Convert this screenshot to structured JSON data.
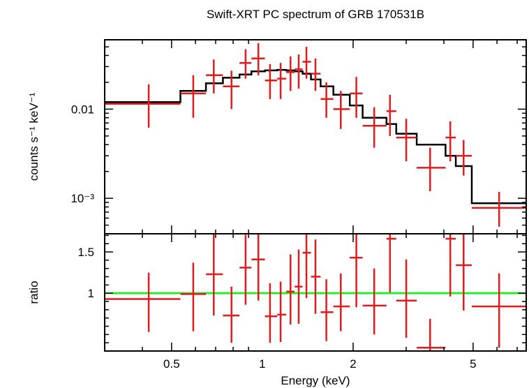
{
  "chart_data": [
    {
      "type": "scatter",
      "panel": "spectrum",
      "title": "Swift-XRT PC spectrum of GRB 170531B",
      "xlabel": "Energy (keV)",
      "ylabel": "counts s⁻¹ keV⁻¹",
      "x_scale": "log",
      "y_scale": "log",
      "xlim": [
        0.3,
        7.5
      ],
      "ylim": [
        0.0004,
        0.06
      ],
      "y_tick_labels": [
        "0.01",
        "10⁻³"
      ],
      "grid": false,
      "data": {
        "color": "#e31a1c",
        "points": [
          {
            "x": 0.42,
            "x_lo": 0.3,
            "x_hi": 0.535,
            "y": 0.0115,
            "y_err_lo": 0.0053,
            "y_err_hi": 0.0075
          },
          {
            "x": 0.59,
            "x_lo": 0.535,
            "x_hi": 0.65,
            "y": 0.015,
            "y_err_lo": 0.007,
            "y_err_hi": 0.009
          },
          {
            "x": 0.69,
            "x_lo": 0.65,
            "x_hi": 0.74,
            "y": 0.024,
            "y_err_lo": 0.009,
            "y_err_hi": 0.012
          },
          {
            "x": 0.79,
            "x_lo": 0.74,
            "x_hi": 0.84,
            "y": 0.018,
            "y_err_lo": 0.008,
            "y_err_hi": 0.009
          },
          {
            "x": 0.88,
            "x_lo": 0.84,
            "x_hi": 0.92,
            "y": 0.033,
            "y_err_lo": 0.011,
            "y_err_hi": 0.014
          },
          {
            "x": 0.97,
            "x_lo": 0.92,
            "x_hi": 1.02,
            "y": 0.037,
            "y_err_lo": 0.013,
            "y_err_hi": 0.018
          },
          {
            "x": 1.06,
            "x_lo": 1.02,
            "x_hi": 1.12,
            "y": 0.021,
            "y_err_lo": 0.008,
            "y_err_hi": 0.011
          },
          {
            "x": 1.15,
            "x_lo": 1.12,
            "x_hi": 1.2,
            "y": 0.022,
            "y_err_lo": 0.009,
            "y_err_hi": 0.011
          },
          {
            "x": 1.24,
            "x_lo": 1.2,
            "x_hi": 1.28,
            "y": 0.026,
            "y_err_lo": 0.01,
            "y_err_hi": 0.013
          },
          {
            "x": 1.32,
            "x_lo": 1.28,
            "x_hi": 1.36,
            "y": 0.028,
            "y_err_lo": 0.011,
            "y_err_hi": 0.013
          },
          {
            "x": 1.4,
            "x_lo": 1.36,
            "x_hi": 1.45,
            "y": 0.034,
            "y_err_lo": 0.012,
            "y_err_hi": 0.016
          },
          {
            "x": 1.5,
            "x_lo": 1.45,
            "x_hi": 1.56,
            "y": 0.025,
            "y_err_lo": 0.009,
            "y_err_hi": 0.012
          },
          {
            "x": 1.63,
            "x_lo": 1.56,
            "x_hi": 1.72,
            "y": 0.013,
            "y_err_lo": 0.005,
            "y_err_hi": 0.007
          },
          {
            "x": 1.82,
            "x_lo": 1.72,
            "x_hi": 1.95,
            "y": 0.01,
            "y_err_lo": 0.004,
            "y_err_hi": 0.006
          },
          {
            "x": 2.05,
            "x_lo": 1.95,
            "x_hi": 2.15,
            "y": 0.015,
            "y_err_lo": 0.007,
            "y_err_hi": 0.008
          },
          {
            "x": 2.35,
            "x_lo": 2.15,
            "x_hi": 2.58,
            "y": 0.0065,
            "y_err_lo": 0.0028,
            "y_err_hi": 0.004
          },
          {
            "x": 2.65,
            "x_lo": 2.58,
            "x_hi": 2.78,
            "y": 0.0095,
            "y_err_lo": 0.0045,
            "y_err_hi": 0.005
          },
          {
            "x": 3.0,
            "x_lo": 2.78,
            "x_hi": 3.25,
            "y": 0.0048,
            "y_err_lo": 0.0022,
            "y_err_hi": 0.003
          },
          {
            "x": 3.6,
            "x_lo": 3.25,
            "x_hi": 4.05,
            "y": 0.0022,
            "y_err_lo": 0.001,
            "y_err_hi": 0.0015
          },
          {
            "x": 4.2,
            "x_lo": 4.05,
            "x_hi": 4.38,
            "y": 0.0048,
            "y_err_lo": 0.0022,
            "y_err_hi": 0.0025
          },
          {
            "x": 4.65,
            "x_lo": 4.38,
            "x_hi": 4.95,
            "y": 0.003,
            "y_err_lo": 0.0012,
            "y_err_hi": 0.0015
          },
          {
            "x": 6.1,
            "x_lo": 4.95,
            "x_hi": 7.5,
            "y": 0.00078,
            "y_err_lo": 0.0003,
            "y_err_hi": 0.0004
          }
        ]
      },
      "model": {
        "color": "#000000",
        "steps": [
          {
            "x0": 0.3,
            "x1": 0.535,
            "y": 0.012
          },
          {
            "x0": 0.535,
            "x1": 0.65,
            "y": 0.016
          },
          {
            "x0": 0.65,
            "x1": 0.74,
            "y": 0.0195
          },
          {
            "x0": 0.74,
            "x1": 0.84,
            "y": 0.0225
          },
          {
            "x0": 0.84,
            "x1": 0.92,
            "y": 0.0245
          },
          {
            "x0": 0.92,
            "x1": 1.02,
            "y": 0.0265
          },
          {
            "x0": 1.02,
            "x1": 1.12,
            "y": 0.0272
          },
          {
            "x0": 1.12,
            "x1": 1.2,
            "y": 0.0276
          },
          {
            "x0": 1.2,
            "x1": 1.28,
            "y": 0.0272
          },
          {
            "x0": 1.28,
            "x1": 1.36,
            "y": 0.0265
          },
          {
            "x0": 1.36,
            "x1": 1.45,
            "y": 0.025
          },
          {
            "x0": 1.45,
            "x1": 1.56,
            "y": 0.0215
          },
          {
            "x0": 1.56,
            "x1": 1.72,
            "y": 0.018
          },
          {
            "x0": 1.72,
            "x1": 1.95,
            "y": 0.0145
          },
          {
            "x0": 1.95,
            "x1": 2.15,
            "y": 0.011
          },
          {
            "x0": 2.15,
            "x1": 2.58,
            "y": 0.008
          },
          {
            "x0": 2.58,
            "x1": 2.78,
            "y": 0.0068
          },
          {
            "x0": 2.78,
            "x1": 3.25,
            "y": 0.0053
          },
          {
            "x0": 3.25,
            "x1": 4.05,
            "y": 0.004
          },
          {
            "x0": 4.05,
            "x1": 4.38,
            "y": 0.003
          },
          {
            "x0": 4.38,
            "x1": 4.95,
            "y": 0.0023
          },
          {
            "x0": 4.95,
            "x1": 7.5,
            "y": 0.00088
          }
        ]
      }
    },
    {
      "type": "scatter",
      "panel": "ratio",
      "xlabel": "Energy (keV)",
      "ylabel": "ratio",
      "x_scale": "log",
      "y_scale": "linear",
      "xlim": [
        0.3,
        7.5
      ],
      "ylim": [
        0.3,
        1.72
      ],
      "x_tick_labels": [
        "0.5",
        "1",
        "2",
        "5"
      ],
      "x_tick_values": [
        0.5,
        1,
        2,
        5
      ],
      "y_tick_labels": [
        "1",
        "1.5"
      ],
      "y_tick_values": [
        1,
        1.5
      ],
      "grid": false,
      "reference_line": {
        "y": 1,
        "color": "#00ff00"
      },
      "data": {
        "color": "#e31a1c",
        "points": [
          {
            "x": 0.42,
            "x_lo": 0.3,
            "x_hi": 0.535,
            "y": 0.93,
            "y_err_lo": 0.4,
            "y_err_hi": 0.32
          },
          {
            "x": 0.59,
            "x_lo": 0.535,
            "x_hi": 0.65,
            "y": 0.99,
            "y_err_lo": 0.45,
            "y_err_hi": 0.38
          },
          {
            "x": 0.69,
            "x_lo": 0.65,
            "x_hi": 0.74,
            "y": 1.23,
            "y_err_lo": 0.5,
            "y_err_hi": 0.5
          },
          {
            "x": 0.79,
            "x_lo": 0.74,
            "x_hi": 0.84,
            "y": 0.73,
            "y_err_lo": 0.33,
            "y_err_hi": 0.35
          },
          {
            "x": 0.88,
            "x_lo": 0.84,
            "x_hi": 0.92,
            "y": 1.31,
            "y_err_lo": 0.45,
            "y_err_hi": 0.4
          },
          {
            "x": 0.97,
            "x_lo": 0.92,
            "x_hi": 1.02,
            "y": 1.41,
            "y_err_lo": 0.5,
            "y_err_hi": 0.35
          },
          {
            "x": 1.06,
            "x_lo": 1.02,
            "x_hi": 1.12,
            "y": 0.72,
            "y_err_lo": 0.32,
            "y_err_hi": 0.4
          },
          {
            "x": 1.15,
            "x_lo": 1.12,
            "x_hi": 1.2,
            "y": 0.74,
            "y_err_lo": 0.33,
            "y_err_hi": 0.4
          },
          {
            "x": 1.24,
            "x_lo": 1.2,
            "x_hi": 1.28,
            "y": 1.02,
            "y_err_lo": 0.4,
            "y_err_hi": 0.45
          },
          {
            "x": 1.32,
            "x_lo": 1.28,
            "x_hi": 1.36,
            "y": 1.08,
            "y_err_lo": 0.45,
            "y_err_hi": 0.45
          },
          {
            "x": 1.4,
            "x_lo": 1.36,
            "x_hi": 1.45,
            "y": 1.49,
            "y_err_lo": 0.55,
            "y_err_hi": 0.45
          },
          {
            "x": 1.5,
            "x_lo": 1.45,
            "x_hi": 1.56,
            "y": 1.2,
            "y_err_lo": 0.45,
            "y_err_hi": 0.45
          },
          {
            "x": 1.63,
            "x_lo": 1.56,
            "x_hi": 1.72,
            "y": 0.77,
            "y_err_lo": 0.35,
            "y_err_hi": 0.4
          },
          {
            "x": 1.82,
            "x_lo": 1.72,
            "x_hi": 1.95,
            "y": 0.84,
            "y_err_lo": 0.3,
            "y_err_hi": 0.4
          },
          {
            "x": 2.05,
            "x_lo": 1.95,
            "x_hi": 2.15,
            "y": 1.43,
            "y_err_lo": 0.6,
            "y_err_hi": 0.33
          },
          {
            "x": 2.35,
            "x_lo": 2.15,
            "x_hi": 2.58,
            "y": 0.85,
            "y_err_lo": 0.35,
            "y_err_hi": 0.45
          },
          {
            "x": 2.65,
            "x_lo": 2.58,
            "x_hi": 2.78,
            "y": 1.66,
            "y_err_lo": 0.65,
            "y_err_hi": 0.1
          },
          {
            "x": 3.0,
            "x_lo": 2.78,
            "x_hi": 3.25,
            "y": 0.91,
            "y_err_lo": 0.45,
            "y_err_hi": 0.5
          },
          {
            "x": 3.6,
            "x_lo": 3.25,
            "x_hi": 4.05,
            "y": 0.34,
            "y_err_lo": 0.04,
            "y_err_hi": 0.35
          },
          {
            "x": 4.2,
            "x_lo": 4.05,
            "x_hi": 4.38,
            "y": 1.66,
            "y_err_lo": 0.7,
            "y_err_hi": 0.1
          },
          {
            "x": 4.65,
            "x_lo": 4.38,
            "x_hi": 4.95,
            "y": 1.34,
            "y_err_lo": 0.55,
            "y_err_hi": 0.38
          },
          {
            "x": 6.1,
            "x_lo": 4.95,
            "x_hi": 7.5,
            "y": 0.84,
            "y_err_lo": 0.5,
            "y_err_hi": 0.4
          }
        ]
      }
    }
  ]
}
